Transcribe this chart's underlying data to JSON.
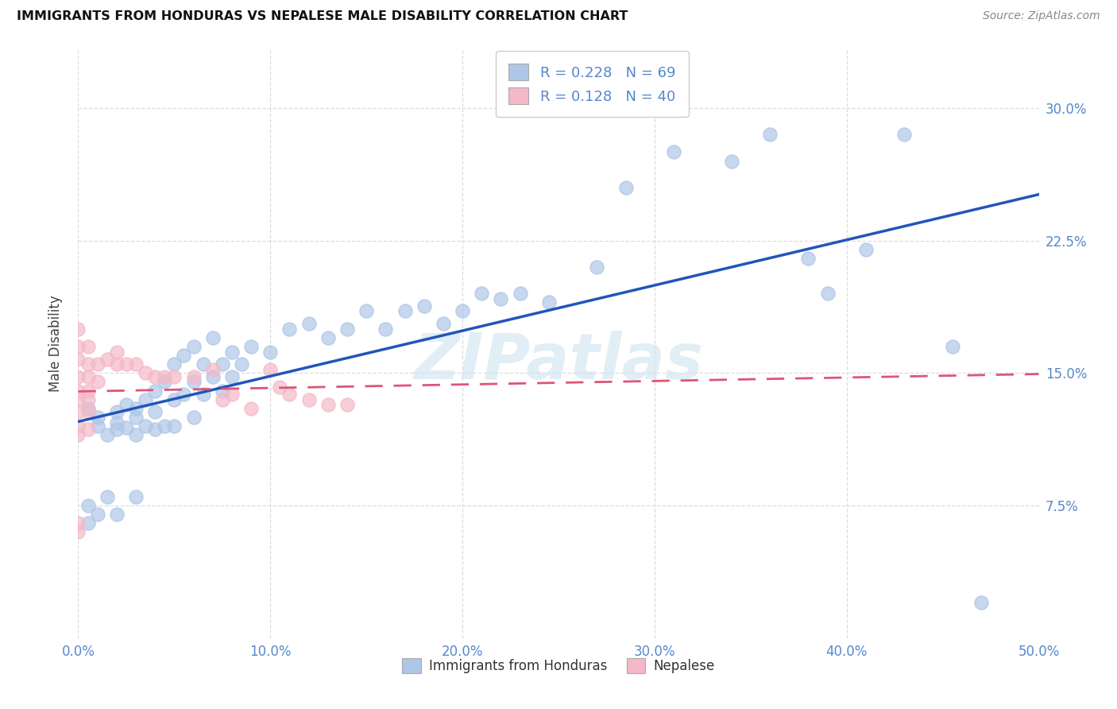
{
  "title": "IMMIGRANTS FROM HONDURAS VS NEPALESE MALE DISABILITY CORRELATION CHART",
  "source": "Source: ZipAtlas.com",
  "ylabel": "Male Disability",
  "watermark": "ZIPatlas",
  "xlim": [
    0,
    0.5
  ],
  "ylim": [
    0,
    0.333
  ],
  "xticks": [
    0.0,
    0.1,
    0.2,
    0.3,
    0.4,
    0.5
  ],
  "yticks": [
    0.075,
    0.15,
    0.225,
    0.3
  ],
  "xticklabels": [
    "0.0%",
    "10.0%",
    "20.0%",
    "30.0%",
    "40.0%",
    "50.0%"
  ],
  "yticklabels": [
    "7.5%",
    "15.0%",
    "22.5%",
    "30.0%"
  ],
  "blue_R": "0.228",
  "blue_N": "69",
  "pink_R": "0.128",
  "pink_N": "40",
  "blue_color": "#aec6e8",
  "pink_color": "#f4b8c8",
  "blue_line_color": "#2255bb",
  "pink_line_color": "#dd5577",
  "tick_color": "#5588cc",
  "blue_x": [
    0.005,
    0.01,
    0.01,
    0.015,
    0.02,
    0.02,
    0.02,
    0.025,
    0.025,
    0.03,
    0.03,
    0.03,
    0.035,
    0.035,
    0.04,
    0.04,
    0.04,
    0.045,
    0.045,
    0.05,
    0.05,
    0.05,
    0.055,
    0.055,
    0.06,
    0.06,
    0.06,
    0.065,
    0.065,
    0.07,
    0.07,
    0.075,
    0.075,
    0.08,
    0.08,
    0.085,
    0.09,
    0.1,
    0.11,
    0.12,
    0.13,
    0.14,
    0.15,
    0.16,
    0.17,
    0.18,
    0.19,
    0.2,
    0.21,
    0.22,
    0.23,
    0.245,
    0.27,
    0.285,
    0.31,
    0.34,
    0.36,
    0.38,
    0.39,
    0.41,
    0.43,
    0.455,
    0.47,
    0.005,
    0.005,
    0.01,
    0.015,
    0.02,
    0.03
  ],
  "blue_y": [
    0.13,
    0.125,
    0.12,
    0.115,
    0.128,
    0.122,
    0.118,
    0.132,
    0.119,
    0.13,
    0.125,
    0.115,
    0.135,
    0.12,
    0.14,
    0.128,
    0.118,
    0.145,
    0.12,
    0.155,
    0.135,
    0.12,
    0.16,
    0.138,
    0.165,
    0.145,
    0.125,
    0.155,
    0.138,
    0.17,
    0.148,
    0.155,
    0.14,
    0.162,
    0.148,
    0.155,
    0.165,
    0.162,
    0.175,
    0.178,
    0.17,
    0.175,
    0.185,
    0.175,
    0.185,
    0.188,
    0.178,
    0.185,
    0.195,
    0.192,
    0.195,
    0.19,
    0.21,
    0.255,
    0.275,
    0.27,
    0.285,
    0.215,
    0.195,
    0.22,
    0.285,
    0.165,
    0.02,
    0.075,
    0.065,
    0.07,
    0.08,
    0.07,
    0.08
  ],
  "pink_x": [
    0.0,
    0.0,
    0.0,
    0.0,
    0.0,
    0.0,
    0.0,
    0.0,
    0.0,
    0.0,
    0.005,
    0.005,
    0.005,
    0.005,
    0.005,
    0.005,
    0.005,
    0.01,
    0.01,
    0.015,
    0.02,
    0.02,
    0.025,
    0.03,
    0.035,
    0.04,
    0.045,
    0.05,
    0.06,
    0.07,
    0.075,
    0.08,
    0.09,
    0.1,
    0.105,
    0.11,
    0.12,
    0.13,
    0.14,
    0.0
  ],
  "pink_y": [
    0.175,
    0.165,
    0.158,
    0.148,
    0.14,
    0.135,
    0.128,
    0.12,
    0.115,
    0.065,
    0.165,
    0.155,
    0.148,
    0.14,
    0.135,
    0.128,
    0.118,
    0.155,
    0.145,
    0.158,
    0.162,
    0.155,
    0.155,
    0.155,
    0.15,
    0.148,
    0.148,
    0.148,
    0.148,
    0.152,
    0.135,
    0.138,
    0.13,
    0.152,
    0.142,
    0.138,
    0.135,
    0.132,
    0.132,
    0.06
  ],
  "background_color": "#ffffff",
  "grid_color": "#dddddd",
  "legend_label1": "R = 0.228   N = 69",
  "legend_label2": "R = 0.128   N = 40"
}
